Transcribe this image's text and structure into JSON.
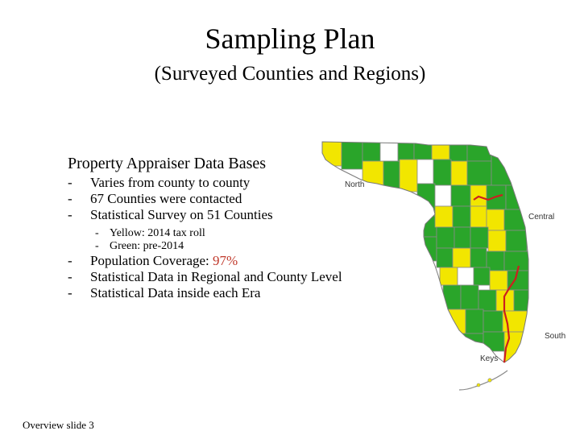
{
  "slide": {
    "title": "Sampling Plan",
    "subtitle": "(Surveyed Counties and Regions)",
    "heading": "Property Appraiser Data Bases",
    "bullets_top": [
      "Varies from county to county",
      "67 Counties were contacted",
      "Statistical Survey on 51 Counties"
    ],
    "sub_bullets": [
      "Yellow: 2014 tax roll",
      "Green: pre-2014"
    ],
    "coverage": {
      "label": "Population Coverage: ",
      "value": "97%"
    },
    "bullets_bottom": [
      "Statistical Data in Regional and County Level",
      "Statistical Data inside each Era"
    ],
    "footer": "Overview slide 3"
  },
  "map": {
    "region_labels": {
      "north": "North",
      "central": "Central",
      "south": "South",
      "keys": "Keys"
    },
    "colors": {
      "yellow": "#f2e600",
      "green": "#2aa52a",
      "white": "#ffffff",
      "border": "#8a8a8a",
      "region_line": "#cc1f1f",
      "accent": "#c0392b"
    }
  }
}
